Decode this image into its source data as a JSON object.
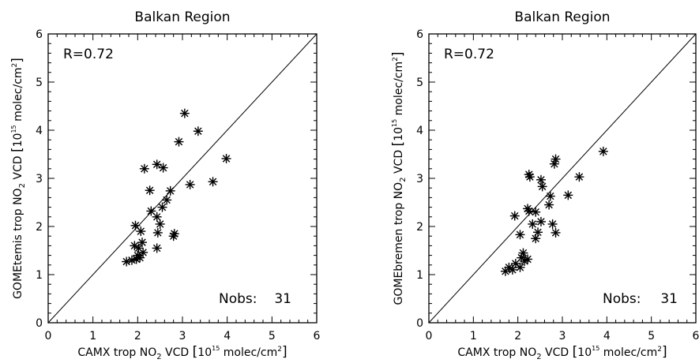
{
  "chart_data": [
    {
      "type": "scatter",
      "title": "Balkan Region",
      "xlabel": "CAMX trop NO₂ VCD [10¹⁵ molec/cm²]",
      "ylabel": "GOMEtemis trop NO₂ VCD [10¹⁵ molec/cm²]",
      "xlim": [
        0,
        6
      ],
      "ylim": [
        0,
        6
      ],
      "x_ticks": [
        "0",
        "1",
        "2",
        "3",
        "4",
        "5",
        "6"
      ],
      "y_ticks": [
        "0",
        "1",
        "2",
        "3",
        "4",
        "5",
        "6"
      ],
      "one_to_one_line": true,
      "marker": "asterisk",
      "annotation_r": "R=0.72",
      "annotation_nobs_label": "Nobs:",
      "annotation_nobs_value": "31",
      "points": [
        {
          "x": 3.05,
          "y": 4.35
        },
        {
          "x": 3.35,
          "y": 3.98
        },
        {
          "x": 2.92,
          "y": 3.76
        },
        {
          "x": 3.98,
          "y": 3.41
        },
        {
          "x": 2.43,
          "y": 3.29
        },
        {
          "x": 2.15,
          "y": 3.2
        },
        {
          "x": 2.57,
          "y": 3.22
        },
        {
          "x": 3.68,
          "y": 2.93
        },
        {
          "x": 3.17,
          "y": 2.87
        },
        {
          "x": 2.27,
          "y": 2.75
        },
        {
          "x": 2.73,
          "y": 2.74
        },
        {
          "x": 2.65,
          "y": 2.55
        },
        {
          "x": 2.55,
          "y": 2.4
        },
        {
          "x": 2.3,
          "y": 2.32
        },
        {
          "x": 2.43,
          "y": 2.2
        },
        {
          "x": 2.5,
          "y": 2.05
        },
        {
          "x": 1.95,
          "y": 2.02
        },
        {
          "x": 2.07,
          "y": 1.9
        },
        {
          "x": 2.45,
          "y": 1.87
        },
        {
          "x": 2.82,
          "y": 1.85
        },
        {
          "x": 2.8,
          "y": 1.8
        },
        {
          "x": 2.1,
          "y": 1.67
        },
        {
          "x": 1.93,
          "y": 1.6
        },
        {
          "x": 2.02,
          "y": 1.55
        },
        {
          "x": 2.43,
          "y": 1.55
        },
        {
          "x": 2.12,
          "y": 1.46
        },
        {
          "x": 2.0,
          "y": 1.4
        },
        {
          "x": 2.05,
          "y": 1.35
        },
        {
          "x": 1.97,
          "y": 1.32
        },
        {
          "x": 1.87,
          "y": 1.3
        },
        {
          "x": 1.75,
          "y": 1.27
        }
      ]
    },
    {
      "type": "scatter",
      "title": "Balkan Region",
      "xlabel": "CAMX trop NO₂ VCD [10¹⁵ molec/cm²]",
      "ylabel": "GOMEbremen trop NO₂ VCD [10¹⁵ molec/cm²]",
      "xlim": [
        0,
        6
      ],
      "ylim": [
        0,
        6
      ],
      "x_ticks": [
        "0",
        "1",
        "2",
        "3",
        "4",
        "5",
        "6"
      ],
      "y_ticks": [
        "0",
        "1",
        "2",
        "3",
        "4",
        "5",
        "6"
      ],
      "one_to_one_line": true,
      "marker": "asterisk",
      "annotation_r": "R=0.72",
      "annotation_nobs_label": "Nobs:",
      "annotation_nobs_value": "31",
      "points": [
        {
          "x": 3.92,
          "y": 3.56
        },
        {
          "x": 2.85,
          "y": 3.4
        },
        {
          "x": 2.82,
          "y": 3.3
        },
        {
          "x": 2.25,
          "y": 3.08
        },
        {
          "x": 2.27,
          "y": 3.03
        },
        {
          "x": 3.38,
          "y": 3.03
        },
        {
          "x": 2.52,
          "y": 2.97
        },
        {
          "x": 2.55,
          "y": 2.83
        },
        {
          "x": 3.13,
          "y": 2.65
        },
        {
          "x": 2.73,
          "y": 2.63
        },
        {
          "x": 2.7,
          "y": 2.45
        },
        {
          "x": 2.22,
          "y": 2.37
        },
        {
          "x": 2.25,
          "y": 2.32
        },
        {
          "x": 2.4,
          "y": 2.3
        },
        {
          "x": 1.93,
          "y": 2.22
        },
        {
          "x": 2.52,
          "y": 2.1
        },
        {
          "x": 2.78,
          "y": 2.05
        },
        {
          "x": 2.33,
          "y": 2.05
        },
        {
          "x": 2.45,
          "y": 1.88
        },
        {
          "x": 2.85,
          "y": 1.87
        },
        {
          "x": 2.05,
          "y": 1.83
        },
        {
          "x": 2.4,
          "y": 1.75
        },
        {
          "x": 2.12,
          "y": 1.45
        },
        {
          "x": 2.08,
          "y": 1.35
        },
        {
          "x": 2.22,
          "y": 1.32
        },
        {
          "x": 2.15,
          "y": 1.28
        },
        {
          "x": 1.95,
          "y": 1.23
        },
        {
          "x": 2.05,
          "y": 1.15
        },
        {
          "x": 1.8,
          "y": 1.15
        },
        {
          "x": 1.88,
          "y": 1.1
        },
        {
          "x": 1.72,
          "y": 1.07
        }
      ]
    }
  ]
}
